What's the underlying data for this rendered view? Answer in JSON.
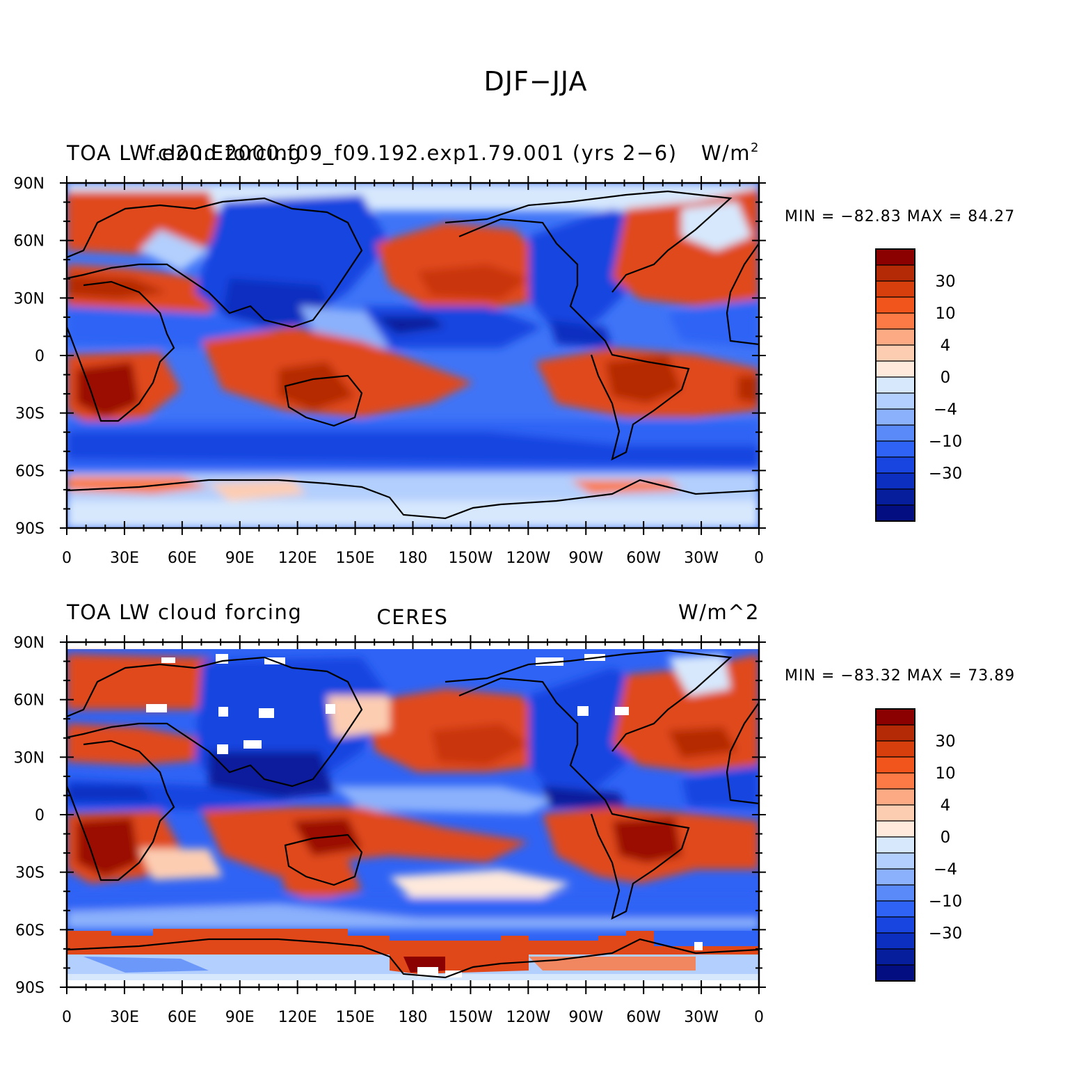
{
  "figure": {
    "title": "DJF−JJA"
  },
  "panels": [
    {
      "left_text": "TOA LW cloud forcing",
      "center_text": "f.e20.E2000.f09_f09.192.exp1.79.001 (yrs 2−6)",
      "right_text": "W/m",
      "right_sup": "2",
      "min_max": "MIN = −82.83 MAX =  84.27",
      "lat_ticks": [
        "90N",
        "60N",
        "30N",
        "0",
        "30S",
        "60S",
        "90S"
      ],
      "lon_ticks": [
        "0",
        "30E",
        "60E",
        "90E",
        "120E",
        "150E",
        "180",
        "150W",
        "120W",
        "90W",
        "60W",
        "30W",
        "0"
      ],
      "colorbar_labels": [
        "30",
        "10",
        "4",
        "0",
        "−4",
        "−10",
        "−30"
      ]
    },
    {
      "left_text": "TOA LW cloud forcing",
      "center_text": "CERES",
      "right_text": "W/m^2",
      "min_max": "MIN = −83.32 MAX =  73.89",
      "lat_ticks": [
        "90N",
        "60N",
        "30N",
        "0",
        "30S",
        "60S",
        "90S"
      ],
      "lon_ticks": [
        "0",
        "30E",
        "60E",
        "90E",
        "120E",
        "150E",
        "180",
        "150W",
        "120W",
        "90W",
        "60W",
        "30W",
        "0"
      ],
      "colorbar_labels": [
        "30",
        "10",
        "4",
        "0",
        "−4",
        "−10",
        "−30"
      ]
    }
  ],
  "colorbar_colors": [
    "#8b0000",
    "#b52a06",
    "#d7400d",
    "#f2551c",
    "#fb7a45",
    "#fcaa84",
    "#fdcdb2",
    "#fee9dc",
    "#d7e8fd",
    "#b3cffd",
    "#8bb1fc",
    "#5a8af9",
    "#2f63f5",
    "#1845e0",
    "#0d2fc0",
    "#071e9c",
    "#030f80"
  ],
  "chart_data": {
    "type": "heatmap",
    "title": "DJF−JJA",
    "variable": "TOA LW cloud forcing",
    "units": "W/m^2",
    "x_axis": {
      "range": [
        0,
        360
      ],
      "ticks": [
        "0",
        "30E",
        "60E",
        "90E",
        "120E",
        "150E",
        "180",
        "150W",
        "120W",
        "90W",
        "60W",
        "30W",
        "0"
      ]
    },
    "y_axis": {
      "range": [
        -90,
        90
      ],
      "ticks": [
        "90N",
        "60N",
        "30N",
        "0",
        "30S",
        "60S",
        "90S"
      ]
    },
    "contour_levels": [
      -40,
      -30,
      -20,
      -10,
      -6,
      -4,
      -2,
      0,
      2,
      4,
      6,
      10,
      20,
      30,
      40
    ],
    "colorbar_tick_labels": [
      "30",
      "10",
      "4",
      "0",
      "-4",
      "-10",
      "-30"
    ],
    "panels": [
      {
        "name": "f.e20.E2000.f09_f09.192.exp1.79.001 (yrs 2-6)",
        "min": -82.83,
        "max": 84.27
      },
      {
        "name": "CERES",
        "min": -83.32,
        "max": 73.89
      }
    ]
  }
}
